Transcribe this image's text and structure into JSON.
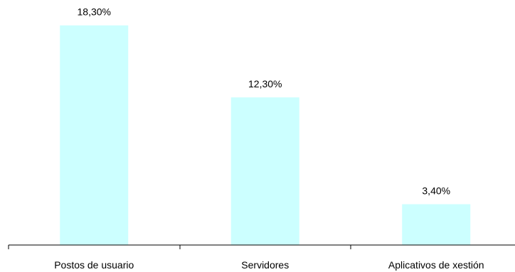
{
  "chart_data": {
    "type": "bar",
    "categories": [
      "Postos de usuario",
      "Servidores",
      "Aplicativos de xestión"
    ],
    "values": [
      18.3,
      12.3,
      3.4
    ],
    "value_labels": [
      "18,30%",
      "12,30%",
      "3,40%"
    ],
    "title": "",
    "xlabel": "",
    "ylabel": "",
    "ylim": [
      0,
      20
    ],
    "grid": false,
    "legend": "none",
    "bar_color": "#ccffff",
    "axis_color": "#000000"
  }
}
